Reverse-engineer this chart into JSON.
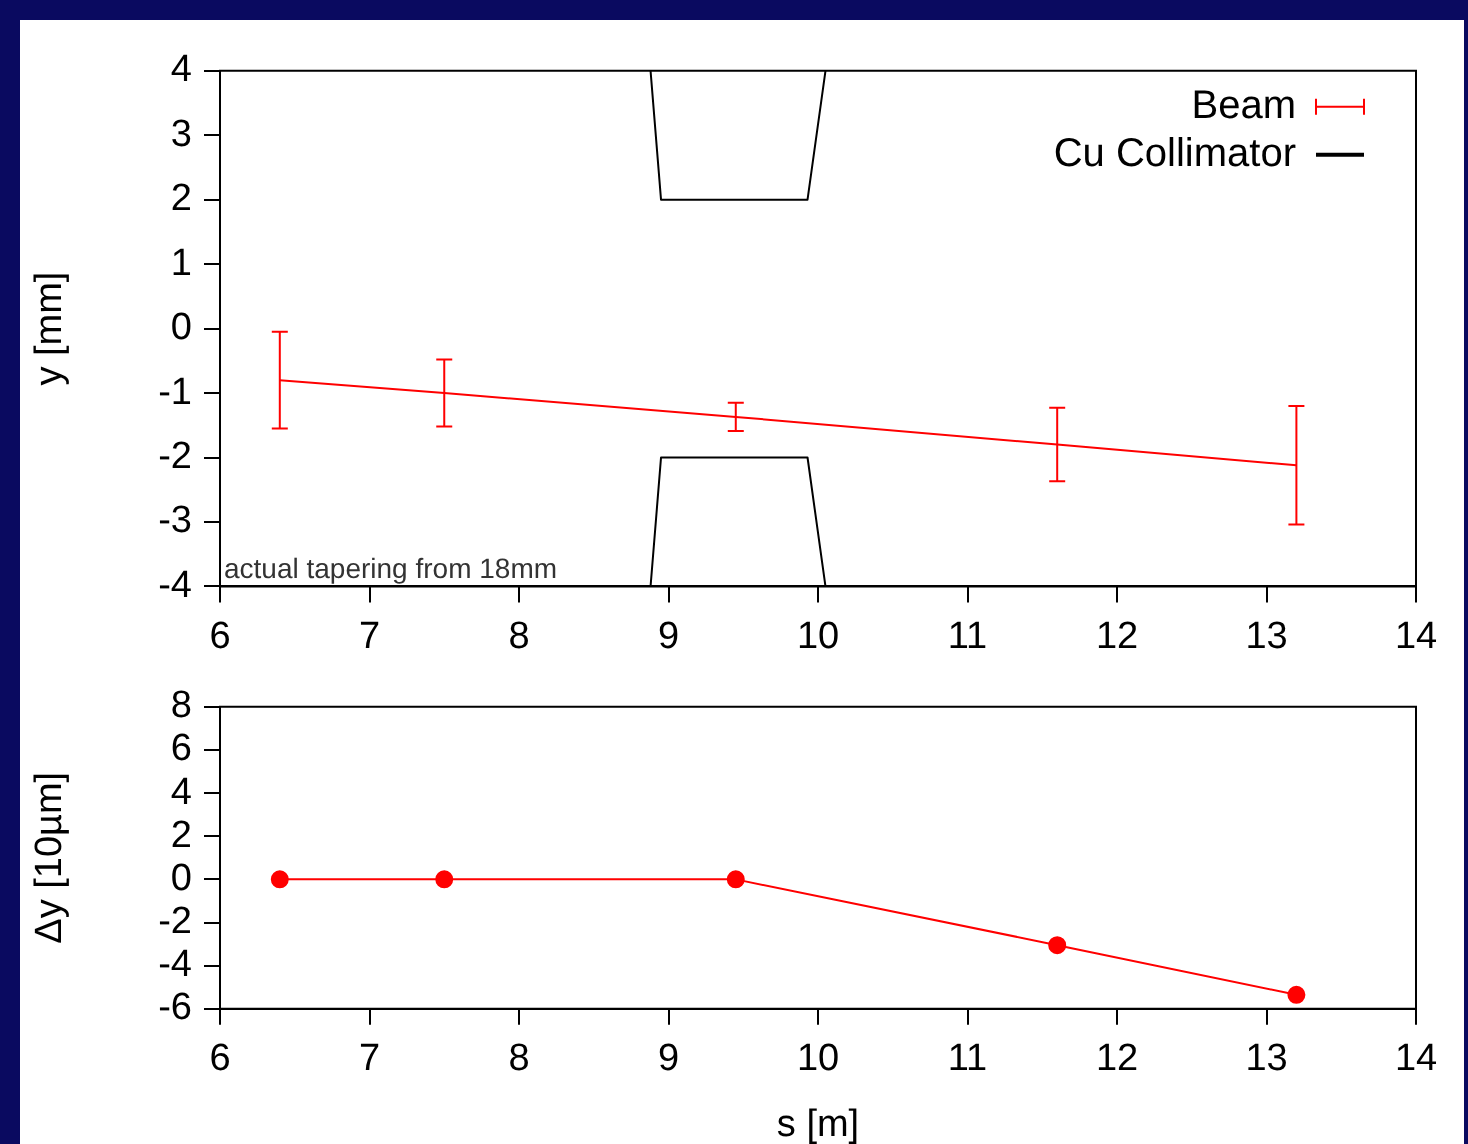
{
  "chart_data": [
    {
      "type": "line",
      "ylabel": "y [mm]",
      "xlim": [
        6,
        14
      ],
      "xticks": [
        6,
        7,
        8,
        9,
        10,
        11,
        12,
        13,
        14
      ],
      "ylim": [
        -4,
        4
      ],
      "yticks": [
        -4,
        -3,
        -2,
        -1,
        0,
        1,
        2,
        3,
        4
      ],
      "grid": false,
      "legend": "top right",
      "marker": "none",
      "line_style": "solid",
      "annotations": [
        "actual tapering from 18mm"
      ],
      "series": [
        {
          "name": "Beam",
          "color": "#ff0000",
          "x": [
            6.4,
            7.5,
            9.45,
            11.6,
            13.2
          ],
          "values": [
            -0.8,
            -1.0,
            -1.37,
            -1.8,
            -2.12
          ],
          "errors": [
            0.75,
            0.52,
            0.22,
            0.57,
            0.92
          ]
        },
        {
          "name": "Cu Collimator",
          "color": "#000000",
          "x": [
            8.88,
            8.95,
            9.93,
            10.05,
            9.5,
            8.88,
            8.95,
            9.93,
            10.05
          ],
          "values": [
            4,
            2,
            2,
            4,
            null,
            -4,
            -2,
            -2,
            -4
          ]
        }
      ]
    },
    {
      "type": "line",
      "xlabel": "s [m]",
      "ylabel": "Δy [10µm]",
      "xlim": [
        6,
        14
      ],
      "xticks": [
        6,
        7,
        8,
        9,
        10,
        11,
        12,
        13,
        14
      ],
      "ylim": [
        -6,
        8
      ],
      "yticks": [
        -6,
        -4,
        -2,
        0,
        2,
        4,
        6,
        8
      ],
      "grid": false,
      "legend": false,
      "marker": "circle",
      "line_style": "solid",
      "series": [
        {
          "color": "#ff0000",
          "x": [
            6.4,
            7.5,
            9.45,
            11.6,
            13.2
          ],
          "values": [
            0,
            0,
            0,
            -3.05,
            -5.35
          ]
        }
      ]
    }
  ]
}
